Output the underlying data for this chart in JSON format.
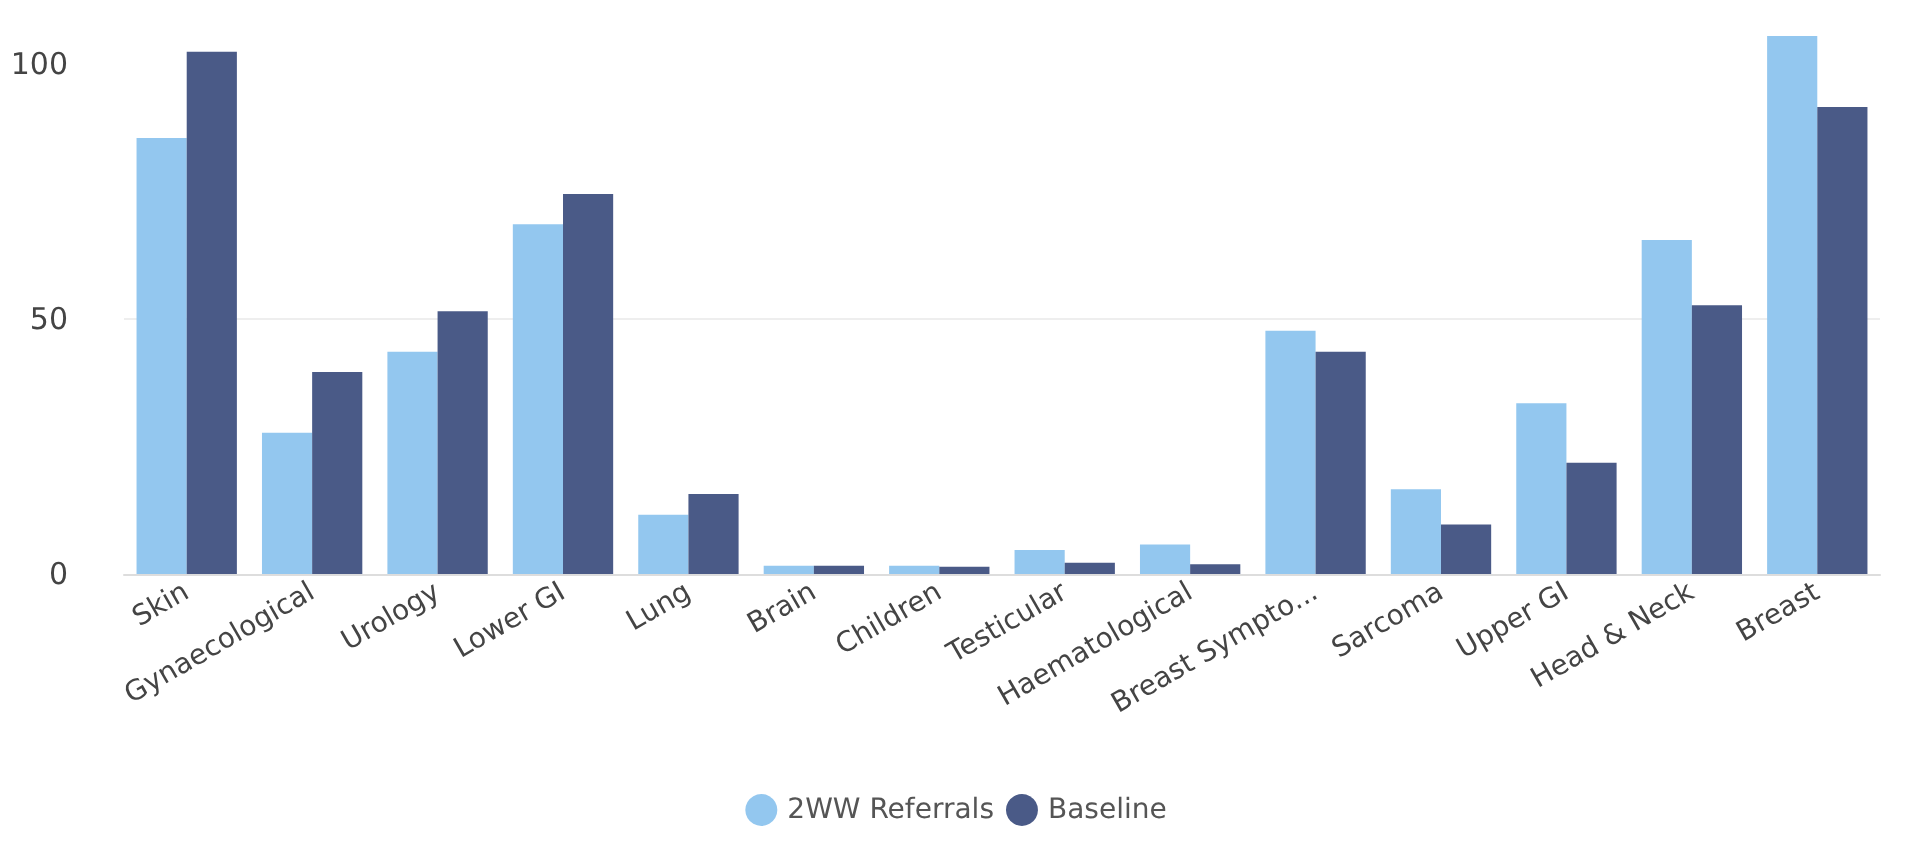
{
  "chart_data": {
    "type": "bar",
    "categories": [
      "Skin",
      "Gynaecological",
      "Urology",
      "Lower GI",
      "Lung",
      "Brain",
      "Children",
      "Testicular",
      "Haematological",
      "Breast Sympto...",
      "Sarcoma",
      "Upper GI",
      "Head & Neck",
      "Breast"
    ],
    "series": [
      {
        "name": "2WW Referrals",
        "color": "#93c7ef",
        "values": [
          85.5,
          27.7,
          43.6,
          68.6,
          11.6,
          1.6,
          1.6,
          4.7,
          5.8,
          47.7,
          16.6,
          33.5,
          65.5,
          105.5
        ]
      },
      {
        "name": "Baseline",
        "color": "#4a5a87",
        "values": [
          102.4,
          39.6,
          51.5,
          74.5,
          15.7,
          1.6,
          1.4,
          2.2,
          1.9,
          43.6,
          9.7,
          21.8,
          52.7,
          91.6
        ]
      }
    ],
    "ylim": [
      0,
      105.5
    ],
    "yticks": [
      0,
      50,
      100
    ],
    "grid": "y",
    "legend": "bottom"
  }
}
